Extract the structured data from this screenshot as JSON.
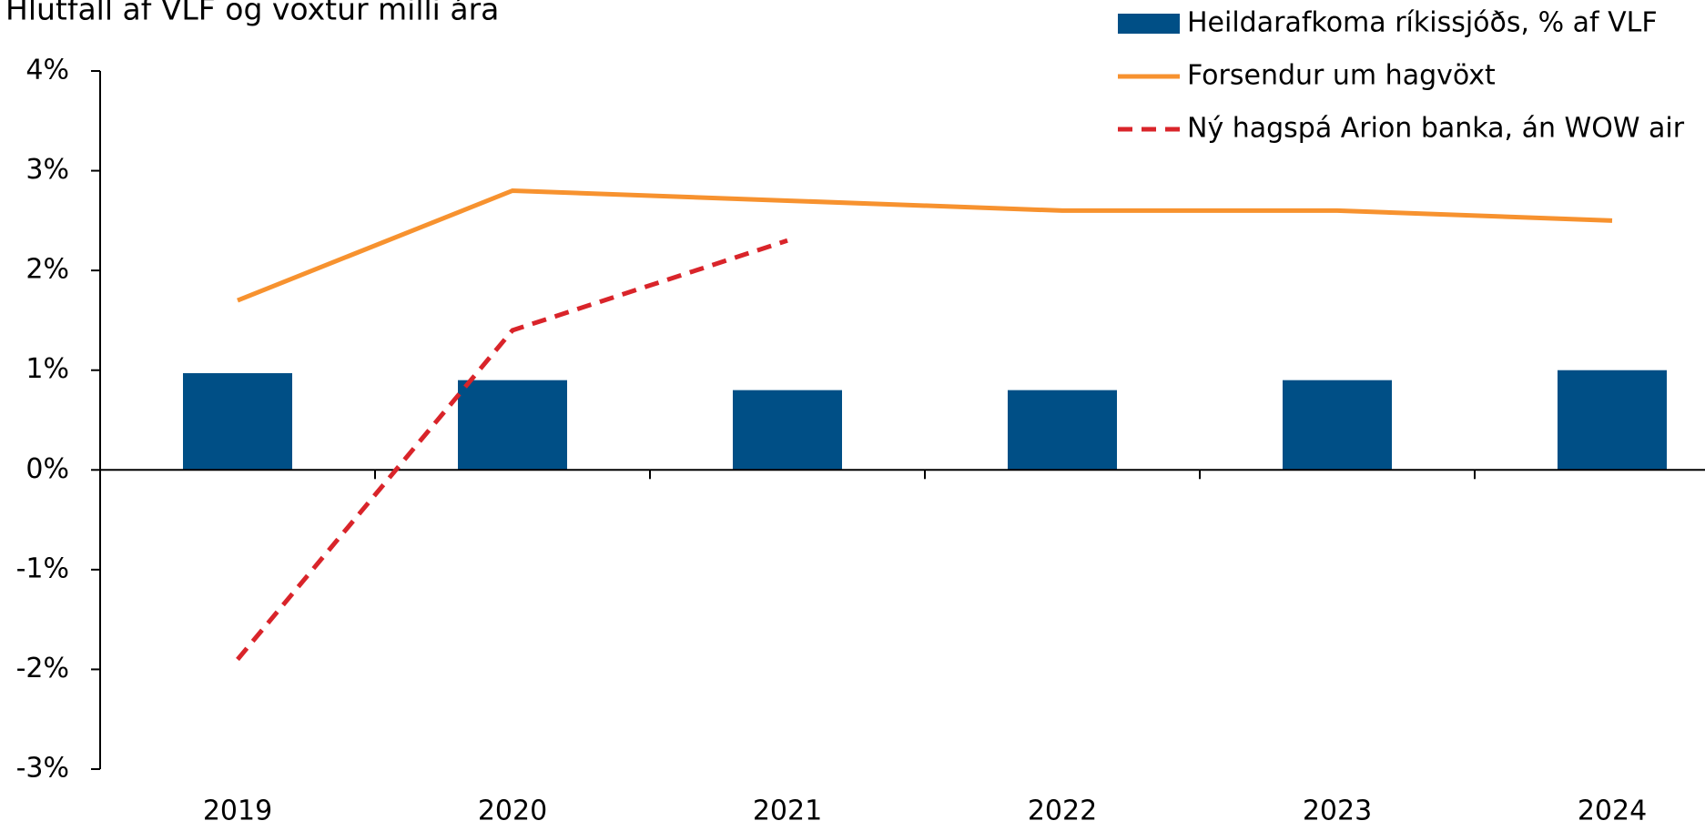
{
  "chart_data": {
    "type": "bar",
    "title": "Hlutfall af VLF og vöxtur milli ára",
    "categories": [
      "2019",
      "2020",
      "2021",
      "2022",
      "2023",
      "2024"
    ],
    "series": [
      {
        "name": "Heildarafkoma ríkissjóðs, % af VLF",
        "type": "bar",
        "color": "#004f86",
        "values": [
          0.97,
          0.9,
          0.8,
          0.8,
          0.9,
          1.0
        ]
      },
      {
        "name": "Forsendur um hagvöxt",
        "type": "line",
        "color": "#f7922f",
        "values": [
          1.7,
          2.8,
          2.7,
          2.6,
          2.6,
          2.5
        ]
      },
      {
        "name": "Ný hagspá Arion banka, án WOW air",
        "type": "line",
        "dashed": true,
        "color": "#d9242a",
        "values": [
          -1.9,
          1.4,
          2.3,
          null,
          null,
          null
        ]
      }
    ],
    "ylim": [
      -3,
      4
    ],
    "yticks": [
      {
        "value": -3,
        "label": "-3%"
      },
      {
        "value": -2,
        "label": "-2%"
      },
      {
        "value": -1,
        "label": "-1%"
      },
      {
        "value": 0,
        "label": "0%"
      },
      {
        "value": 1,
        "label": "1%"
      },
      {
        "value": 2,
        "label": "2%"
      },
      {
        "value": 3,
        "label": "3%"
      },
      {
        "value": 4,
        "label": "4%"
      }
    ],
    "grid": false,
    "legend": "top-right"
  }
}
